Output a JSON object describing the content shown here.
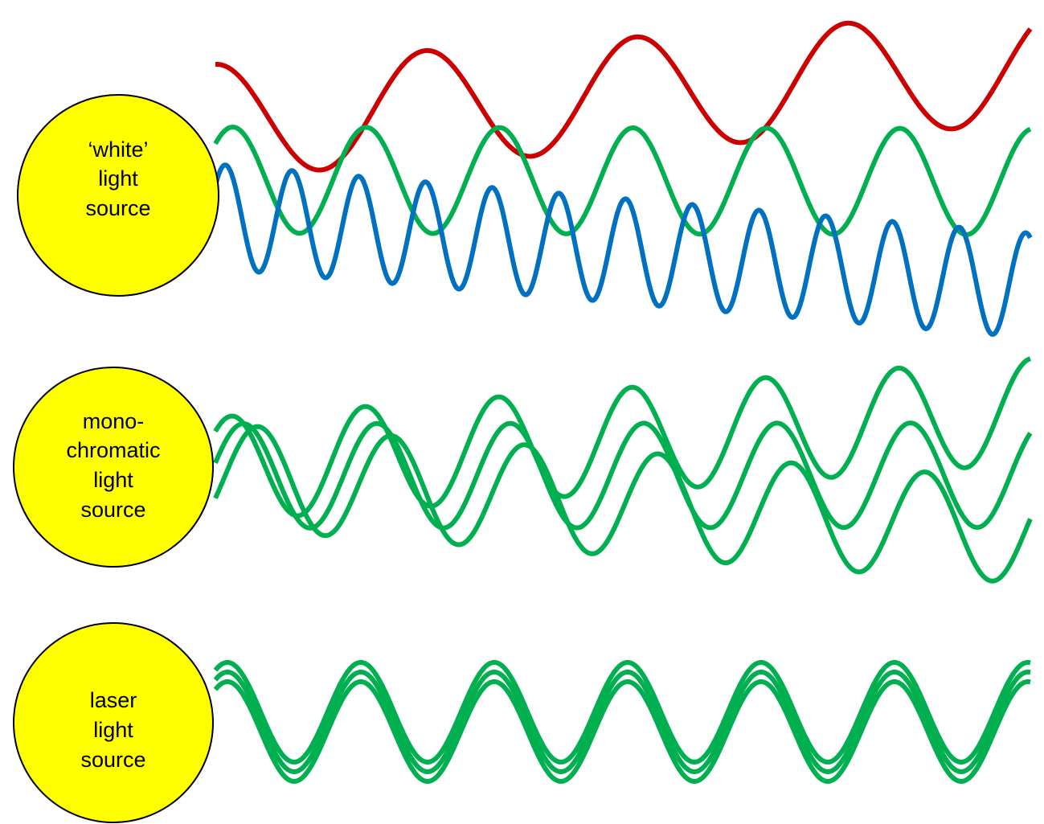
{
  "sources": [
    {
      "id": "white",
      "label_lines": [
        "‘white’",
        "light",
        "source"
      ],
      "waves": [
        {
          "color": "#cc0000",
          "wavelength": 262,
          "amplitude": 70,
          "phase": 0.25,
          "center_start": 150,
          "center_end": 84
        },
        {
          "color": "#00b050",
          "wavelength": 166,
          "amplitude": 66,
          "phase": 0.12,
          "center_start": 224,
          "center_end": 226
        },
        {
          "color": "#0070c0",
          "wavelength": 83,
          "amplitude": 65,
          "phase": 0.1,
          "center_start": 269,
          "center_end": 355
        }
      ]
    },
    {
      "id": "monochromatic",
      "label_lines": [
        "mono-",
        "chromatic",
        "light",
        "source"
      ],
      "waves": [
        {
          "color": "#00b050",
          "wavelength": 166,
          "amplitude": 65,
          "phase": 0.13,
          "center_start": 584,
          "center_end": 511
        },
        {
          "color": "#00b050",
          "wavelength": 166,
          "amplitude": 65,
          "phase": 0.04,
          "center_start": 592,
          "center_end": 591
        },
        {
          "color": "#00b050",
          "wavelength": 166,
          "amplitude": 65,
          "phase": 0.93,
          "center_start": 592,
          "center_end": 661
        }
      ]
    },
    {
      "id": "laser",
      "label_lines": [
        "laser",
        "light",
        "source"
      ],
      "waves": [
        {
          "color": "#00b050",
          "wavelength": 166,
          "amplitude": 62,
          "phase": 0.16,
          "center_start": 886,
          "center_end": 886
        },
        {
          "color": "#00b050",
          "wavelength": 166,
          "amplitude": 62,
          "phase": 0.16,
          "center_start": 898,
          "center_end": 898
        },
        {
          "color": "#00b050",
          "wavelength": 166,
          "amplitude": 62,
          "phase": 0.16,
          "center_start": 910,
          "center_end": 910
        }
      ]
    }
  ]
}
